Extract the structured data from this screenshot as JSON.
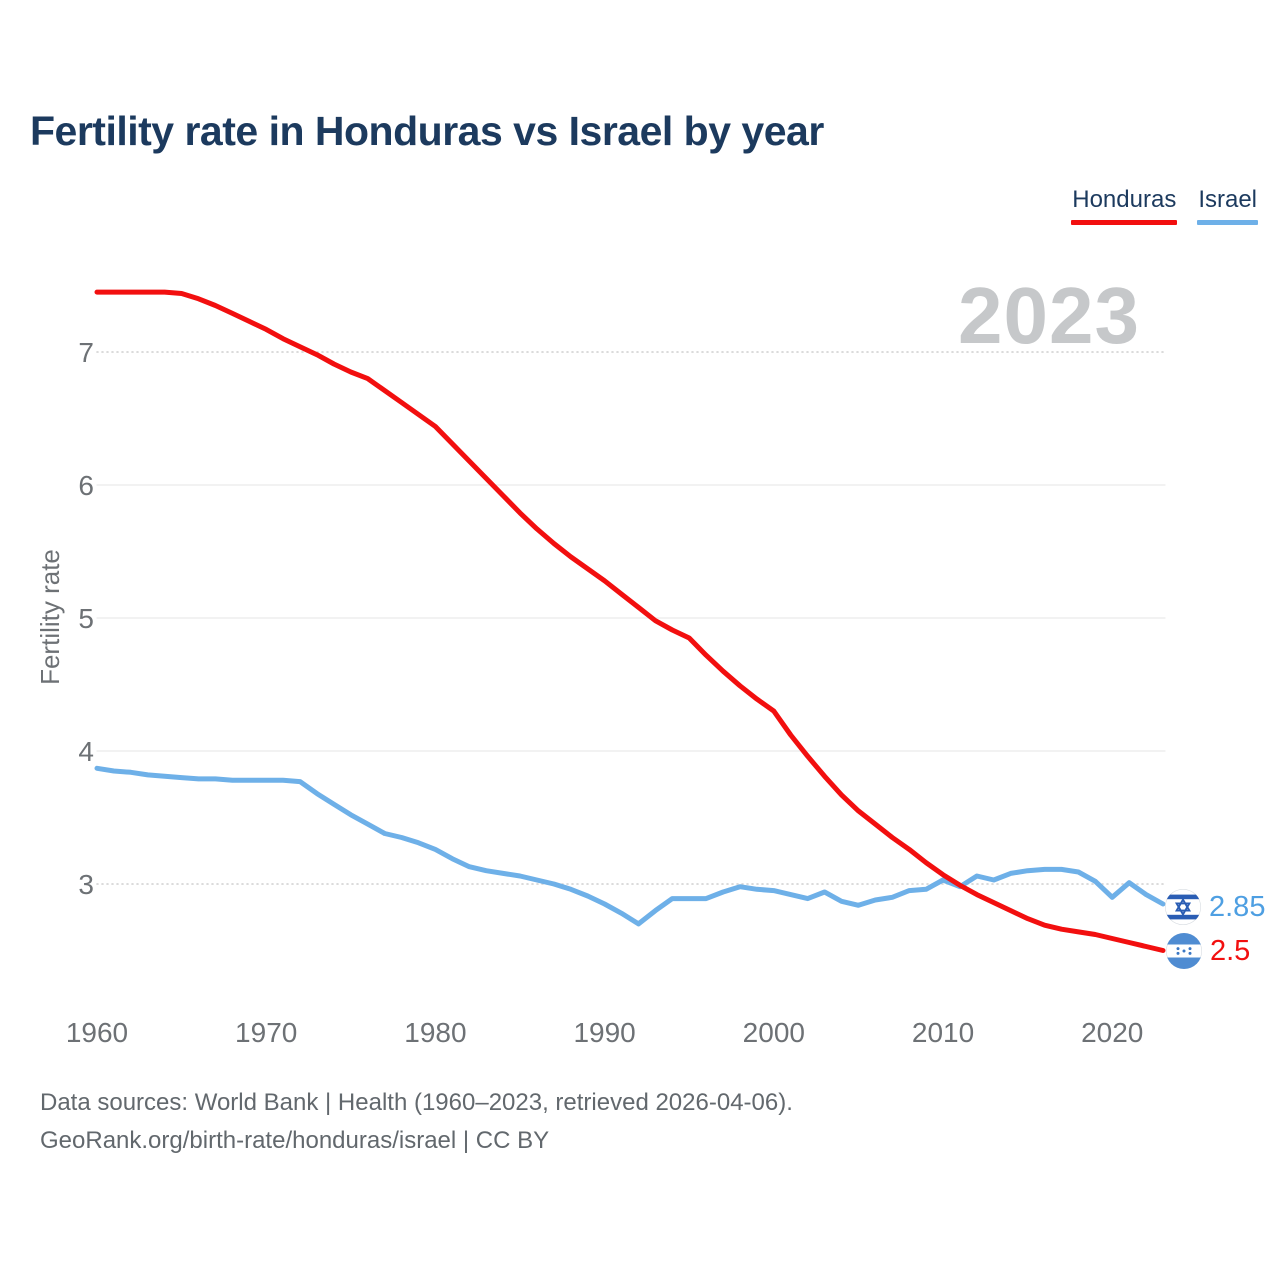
{
  "header": {
    "title": "Fertility rate in Honduras vs Israel by year"
  },
  "watermark": "2023",
  "chart_data": {
    "type": "line",
    "title": "Fertility rate in Honduras vs Israel by year",
    "xlabel": "",
    "ylabel": "Fertility rate",
    "x_range": [
      1960,
      2023
    ],
    "ylim": [
      2.35,
      7.6
    ],
    "yticks": [
      7,
      6,
      5,
      4,
      3
    ],
    "xticks": [
      1960,
      1970,
      1980,
      1990,
      2000,
      2010,
      2020
    ],
    "grid": "horizontal",
    "legend_position": "top-right",
    "series": [
      {
        "name": "Honduras",
        "color": "#f20f0f",
        "end_label": "2.5",
        "values": [
          7.45,
          7.45,
          7.45,
          7.45,
          7.45,
          7.44,
          7.4,
          7.35,
          7.29,
          7.23,
          7.17,
          7.1,
          7.04,
          6.98,
          6.91,
          6.85,
          6.8,
          6.71,
          6.62,
          6.53,
          6.44,
          6.31,
          6.18,
          6.05,
          5.92,
          5.79,
          5.67,
          5.56,
          5.46,
          5.37,
          5.28,
          5.18,
          5.08,
          4.98,
          4.91,
          4.85,
          4.72,
          4.6,
          4.49,
          4.39,
          4.3,
          4.12,
          3.96,
          3.81,
          3.67,
          3.55,
          3.45,
          3.35,
          3.26,
          3.16,
          3.07,
          2.99,
          2.92,
          2.86,
          2.8,
          2.74,
          2.69,
          2.66,
          2.64,
          2.62,
          2.59,
          2.56,
          2.53,
          2.5
        ]
      },
      {
        "name": "Israel",
        "color": "#6eb0e8",
        "end_label": "2.85",
        "values": [
          3.87,
          3.85,
          3.84,
          3.82,
          3.81,
          3.8,
          3.79,
          3.79,
          3.78,
          3.78,
          3.78,
          3.78,
          3.77,
          3.68,
          3.6,
          3.52,
          3.45,
          3.38,
          3.35,
          3.31,
          3.26,
          3.19,
          3.13,
          3.1,
          3.08,
          3.06,
          3.03,
          3.0,
          2.96,
          2.91,
          2.85,
          2.78,
          2.7,
          2.8,
          2.89,
          2.89,
          2.89,
          2.94,
          2.98,
          2.96,
          2.95,
          2.92,
          2.89,
          2.94,
          2.87,
          2.84,
          2.88,
          2.9,
          2.95,
          2.96,
          3.03,
          2.98,
          3.06,
          3.03,
          3.08,
          3.1,
          3.11,
          3.11,
          3.09,
          3.02,
          2.9,
          3.01,
          2.92,
          2.85
        ]
      }
    ]
  },
  "footer": {
    "line1": "Data sources: World Bank | Health (1960–2023, retrieved 2026-04-06).",
    "line2": "GeoRank.org/birth-rate/honduras/israel | CC BY"
  }
}
